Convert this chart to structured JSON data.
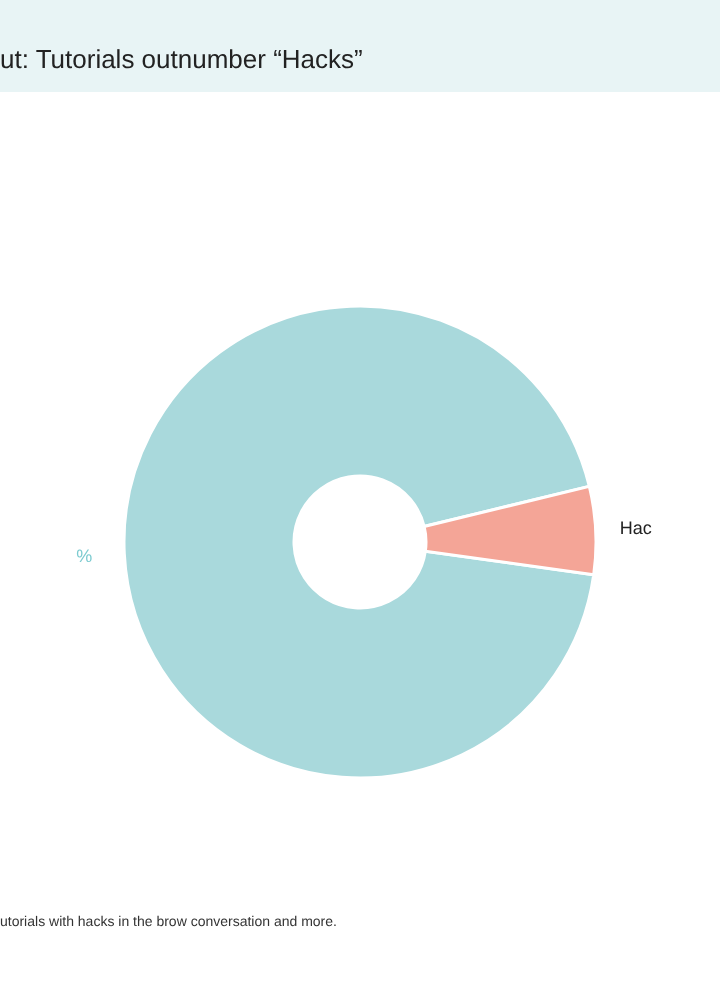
{
  "chart_data": {
    "type": "donut",
    "title": "ut: Tutorials outnumber “Hacks”",
    "categories": [
      "%",
      "Hac"
    ],
    "values": [
      94,
      6
    ],
    "colors": [
      "#a9d9dc",
      "#f4a597"
    ],
    "annotations": [
      "utorials with hacks in the brow conversation and more."
    ]
  }
}
